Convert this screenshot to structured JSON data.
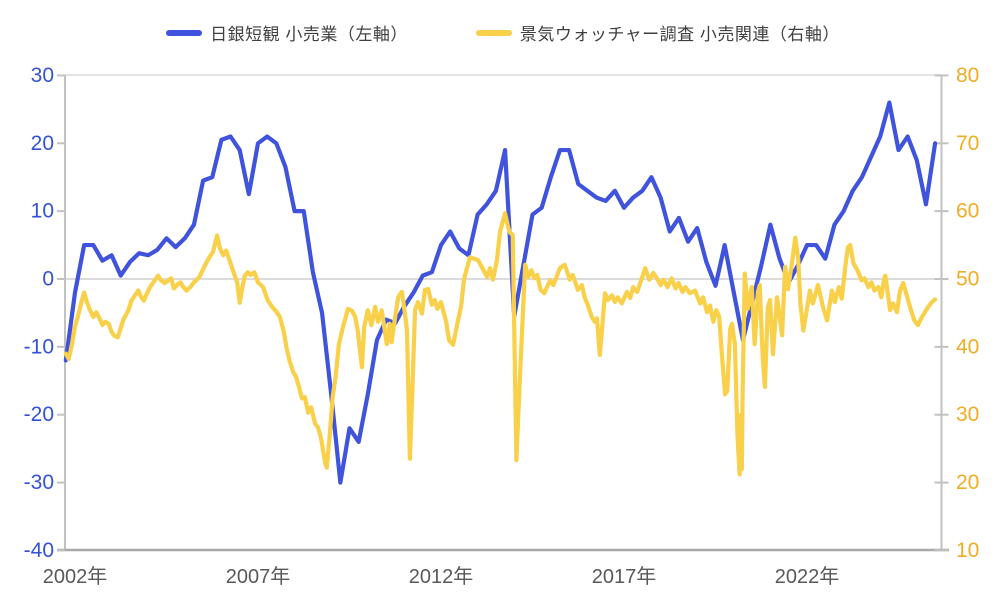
{
  "legend": {
    "tankan_label": "日銀短観 小売業（左軸）",
    "watchers_label": "景気ウォッチャー調査 小売関連（右軸）"
  },
  "chart_data": {
    "type": "line",
    "title": "",
    "xlabel": "",
    "ylabel_left": "",
    "ylabel_right": "",
    "grid": "horizontal line at left-axis 0 / right-axis 50 only, plus top border",
    "legend_position": "top-center",
    "x_axis": {
      "range_years": [
        2001.73,
        2025.7
      ],
      "ticks": [
        {
          "t": 2002,
          "label": "2002年"
        },
        {
          "t": 2007,
          "label": "2007年"
        },
        {
          "t": 2012,
          "label": "2012年"
        },
        {
          "t": 2017,
          "label": "2017年"
        },
        {
          "t": 2022,
          "label": "2022年"
        }
      ],
      "label_color": "#595959"
    },
    "y_axis_left": {
      "ticks": [
        30,
        20,
        10,
        0,
        -10,
        -20,
        -30,
        -40
      ],
      "range": [
        -40,
        30
      ],
      "label_color": "#3452D5"
    },
    "y_axis_right": {
      "ticks": [
        80,
        70,
        60,
        50,
        40,
        30,
        20,
        10
      ],
      "range": [
        10,
        80
      ],
      "label_color": "#EDAD25"
    },
    "axis_line_color": "#C2C2C2",
    "bottom_axis_color": "#A9A9A9",
    "gridline_color": "#DBDBDB",
    "series": [
      {
        "name": "日銀短観 小売業（左軸）",
        "axis": "left",
        "color": "#4053DC",
        "frequency": "quarterly",
        "t0": 2001.75,
        "dt": 0.25,
        "values": [
          -12,
          -2,
          5,
          5,
          2.7,
          3.5,
          0.5,
          2.5,
          3.8,
          3.5,
          4.3,
          6,
          4.7,
          6,
          8,
          14.5,
          15,
          20.5,
          21,
          19,
          12.5,
          20,
          21,
          20,
          16.5,
          10,
          10,
          1,
          -5,
          -17,
          -30,
          -22,
          -24,
          -17,
          -9,
          -6,
          -6.5,
          -4,
          -2,
          0.5,
          1,
          5,
          7,
          4.5,
          3.5,
          9.5,
          11,
          13,
          19,
          -5.5,
          2,
          9.5,
          10.5,
          15,
          19,
          19,
          14,
          13,
          12,
          11.5,
          13,
          10.5,
          12,
          13,
          15,
          12,
          7,
          9,
          5.5,
          7.5,
          2.5,
          -1,
          5,
          -2,
          -9,
          -3.5,
          2,
          8,
          3,
          -0.5,
          2,
          5,
          5,
          3,
          8,
          10,
          13,
          15,
          18,
          21,
          26,
          19,
          21,
          17.5,
          11,
          20
        ]
      },
      {
        "name": "景気ウォッチャー調査 小売関連（右軸）",
        "axis": "right",
        "color": "#F9D04A",
        "frequency": "monthly",
        "points": [
          [
            2001.75,
            39
          ],
          [
            2001.83,
            38.2
          ],
          [
            2001.92,
            40.5
          ],
          [
            2002.0,
            43
          ],
          [
            2002.08,
            44.5
          ],
          [
            2002.17,
            46.5
          ],
          [
            2002.25,
            48
          ],
          [
            2002.33,
            46.5
          ],
          [
            2002.42,
            45.3
          ],
          [
            2002.5,
            44.4
          ],
          [
            2002.58,
            45.1
          ],
          [
            2002.67,
            44.2
          ],
          [
            2002.75,
            43.2
          ],
          [
            2002.83,
            43.7
          ],
          [
            2002.92,
            43.4
          ],
          [
            2003.0,
            42.2
          ],
          [
            2003.08,
            41.6
          ],
          [
            2003.17,
            41.4
          ],
          [
            2003.25,
            42.8
          ],
          [
            2003.33,
            44.1
          ],
          [
            2003.46,
            45.4
          ],
          [
            2003.54,
            46.8
          ],
          [
            2003.63,
            47.5
          ],
          [
            2003.73,
            48.3
          ],
          [
            2003.8,
            47.4
          ],
          [
            2003.88,
            46.8
          ],
          [
            2003.96,
            47.8
          ],
          [
            2004.05,
            48.8
          ],
          [
            2004.14,
            49.5
          ],
          [
            2004.27,
            50.5
          ],
          [
            2004.35,
            49.8
          ],
          [
            2004.45,
            49.4
          ],
          [
            2004.55,
            49.8
          ],
          [
            2004.63,
            50.1
          ],
          [
            2004.7,
            48.6
          ],
          [
            2004.8,
            49.2
          ],
          [
            2004.88,
            49.5
          ],
          [
            2004.96,
            48.8
          ],
          [
            2005.05,
            48.3
          ],
          [
            2005.15,
            48.8
          ],
          [
            2005.25,
            49.5
          ],
          [
            2005.4,
            50.3
          ],
          [
            2005.55,
            52
          ],
          [
            2005.65,
            53
          ],
          [
            2005.77,
            54
          ],
          [
            2005.88,
            56.4
          ],
          [
            2005.96,
            54.5
          ],
          [
            2006.05,
            53.5
          ],
          [
            2006.13,
            54.2
          ],
          [
            2006.22,
            52.8
          ],
          [
            2006.3,
            51.5
          ],
          [
            2006.43,
            49.5
          ],
          [
            2006.5,
            46.5
          ],
          [
            2006.58,
            49
          ],
          [
            2006.64,
            50.5
          ],
          [
            2006.72,
            51
          ],
          [
            2006.8,
            50.6
          ],
          [
            2006.9,
            51
          ],
          [
            2007.0,
            49.5
          ],
          [
            2007.14,
            48.8
          ],
          [
            2007.27,
            46.8
          ],
          [
            2007.4,
            45.8
          ],
          [
            2007.5,
            45.2
          ],
          [
            2007.6,
            44.4
          ],
          [
            2007.7,
            42.3
          ],
          [
            2007.79,
            39.6
          ],
          [
            2007.87,
            37.8
          ],
          [
            2007.96,
            36.3
          ],
          [
            2008.04,
            35.6
          ],
          [
            2008.12,
            34.1
          ],
          [
            2008.2,
            32.4
          ],
          [
            2008.28,
            32.6
          ],
          [
            2008.37,
            30.3
          ],
          [
            2008.45,
            31.1
          ],
          [
            2008.56,
            28.7
          ],
          [
            2008.64,
            28.1
          ],
          [
            2008.72,
            26.6
          ],
          [
            2008.83,
            23
          ],
          [
            2008.88,
            22.2
          ],
          [
            2008.96,
            27
          ],
          [
            2009.04,
            32.6
          ],
          [
            2009.12,
            35.6
          ],
          [
            2009.21,
            40.4
          ],
          [
            2009.32,
            42.9
          ],
          [
            2009.46,
            45.6
          ],
          [
            2009.57,
            45.3
          ],
          [
            2009.65,
            44.5
          ],
          [
            2009.72,
            42.6
          ],
          [
            2009.84,
            37
          ],
          [
            2009.9,
            42.9
          ],
          [
            2010.0,
            45.4
          ],
          [
            2010.1,
            43.2
          ],
          [
            2010.2,
            45.9
          ],
          [
            2010.28,
            43.7
          ],
          [
            2010.38,
            45.4
          ],
          [
            2010.52,
            40.4
          ],
          [
            2010.6,
            43.4
          ],
          [
            2010.65,
            40.7
          ],
          [
            2010.75,
            44.5
          ],
          [
            2010.83,
            47.3
          ],
          [
            2010.93,
            48.1
          ],
          [
            2010.98,
            46.3
          ],
          [
            2011.07,
            42.5
          ],
          [
            2011.15,
            23.5
          ],
          [
            2011.23,
            35.6
          ],
          [
            2011.29,
            45.4
          ],
          [
            2011.37,
            46.6
          ],
          [
            2011.48,
            44.9
          ],
          [
            2011.56,
            48.4
          ],
          [
            2011.65,
            48.5
          ],
          [
            2011.75,
            46.2
          ],
          [
            2011.83,
            46.9
          ],
          [
            2011.9,
            45.6
          ],
          [
            2012.0,
            46.6
          ],
          [
            2012.14,
            43.7
          ],
          [
            2012.22,
            41
          ],
          [
            2012.33,
            40.3
          ],
          [
            2012.45,
            43.5
          ],
          [
            2012.55,
            46
          ],
          [
            2012.63,
            50
          ],
          [
            2012.79,
            53.2
          ],
          [
            2013.01,
            52.8
          ],
          [
            2013.26,
            50.3
          ],
          [
            2013.34,
            51.6
          ],
          [
            2013.42,
            49.9
          ],
          [
            2013.53,
            52.8
          ],
          [
            2013.61,
            56.9
          ],
          [
            2013.75,
            59.7
          ],
          [
            2013.83,
            57.7
          ],
          [
            2013.89,
            56.8
          ],
          [
            2013.96,
            56.5
          ],
          [
            2014.06,
            23.3
          ],
          [
            2014.16,
            36
          ],
          [
            2014.3,
            52.1
          ],
          [
            2014.38,
            50.3
          ],
          [
            2014.47,
            51.3
          ],
          [
            2014.55,
            50.1
          ],
          [
            2014.63,
            50.6
          ],
          [
            2014.72,
            48.4
          ],
          [
            2014.82,
            47.9
          ],
          [
            2014.98,
            49.8
          ],
          [
            2015.07,
            49.1
          ],
          [
            2015.25,
            51.6
          ],
          [
            2015.38,
            52.1
          ],
          [
            2015.52,
            49.9
          ],
          [
            2015.6,
            50.6
          ],
          [
            2015.74,
            48.4
          ],
          [
            2015.85,
            49.1
          ],
          [
            2015.93,
            47.2
          ],
          [
            2016.01,
            46.2
          ],
          [
            2016.12,
            44.4
          ],
          [
            2016.2,
            43.7
          ],
          [
            2016.26,
            44.2
          ],
          [
            2016.34,
            38.8
          ],
          [
            2016.42,
            44
          ],
          [
            2016.48,
            47.9
          ],
          [
            2016.56,
            46.9
          ],
          [
            2016.67,
            47.6
          ],
          [
            2016.75,
            46.6
          ],
          [
            2016.83,
            47.3
          ],
          [
            2016.94,
            46.4
          ],
          [
            2017.08,
            48.1
          ],
          [
            2017.17,
            47.2
          ],
          [
            2017.25,
            48.8
          ],
          [
            2017.36,
            48.1
          ],
          [
            2017.5,
            50.3
          ],
          [
            2017.58,
            51.6
          ],
          [
            2017.69,
            49.9
          ],
          [
            2017.8,
            50.9
          ],
          [
            2017.9,
            50.1
          ],
          [
            2018.0,
            49.1
          ],
          [
            2018.08,
            49.9
          ],
          [
            2018.19,
            48.8
          ],
          [
            2018.3,
            50.1
          ],
          [
            2018.41,
            48.6
          ],
          [
            2018.49,
            49.4
          ],
          [
            2018.6,
            48.1
          ],
          [
            2018.68,
            48.8
          ],
          [
            2018.8,
            47.9
          ],
          [
            2018.94,
            48.3
          ],
          [
            2019.08,
            46.4
          ],
          [
            2019.16,
            47.3
          ],
          [
            2019.27,
            45.1
          ],
          [
            2019.35,
            46.1
          ],
          [
            2019.44,
            43.7
          ],
          [
            2019.52,
            45.4
          ],
          [
            2019.6,
            44.5
          ],
          [
            2019.68,
            38.5
          ],
          [
            2019.76,
            33
          ],
          [
            2019.82,
            33.5
          ],
          [
            2019.9,
            42.6
          ],
          [
            2019.95,
            43.4
          ],
          [
            2020.03,
            40.4
          ],
          [
            2020.1,
            27
          ],
          [
            2020.16,
            21.2
          ],
          [
            2020.2,
            30
          ],
          [
            2020.22,
            22
          ],
          [
            2020.24,
            33
          ],
          [
            2020.3,
            50.8
          ],
          [
            2020.38,
            45.6
          ],
          [
            2020.49,
            48.8
          ],
          [
            2020.57,
            40.4
          ],
          [
            2020.66,
            48.1
          ],
          [
            2020.71,
            49.1
          ],
          [
            2020.79,
            38.5
          ],
          [
            2020.85,
            34.1
          ],
          [
            2020.93,
            45.9
          ],
          [
            2020.99,
            46.9
          ],
          [
            2021.07,
            38.9
          ],
          [
            2021.18,
            47.3
          ],
          [
            2021.32,
            41.7
          ],
          [
            2021.4,
            51.8
          ],
          [
            2021.48,
            48.5
          ],
          [
            2021.58,
            52
          ],
          [
            2021.68,
            56.1
          ],
          [
            2021.76,
            53
          ],
          [
            2021.82,
            46.4
          ],
          [
            2021.9,
            42.4
          ],
          [
            2021.98,
            45
          ],
          [
            2022.08,
            48.3
          ],
          [
            2022.16,
            46.4
          ],
          [
            2022.3,
            49.1
          ],
          [
            2022.44,
            45.8
          ],
          [
            2022.55,
            43.9
          ],
          [
            2022.68,
            48.3
          ],
          [
            2022.76,
            46.6
          ],
          [
            2022.87,
            48.8
          ],
          [
            2022.95,
            47.1
          ],
          [
            2023.05,
            52
          ],
          [
            2023.12,
            54.7
          ],
          [
            2023.18,
            55
          ],
          [
            2023.27,
            52.3
          ],
          [
            2023.38,
            51.3
          ],
          [
            2023.49,
            49.8
          ],
          [
            2023.57,
            50.1
          ],
          [
            2023.68,
            48.8
          ],
          [
            2023.76,
            49.5
          ],
          [
            2023.84,
            48.3
          ],
          [
            2023.95,
            48.8
          ],
          [
            2024.03,
            47.3
          ],
          [
            2024.11,
            50.1
          ],
          [
            2024.14,
            50.5
          ],
          [
            2024.27,
            45.4
          ],
          [
            2024.35,
            46.4
          ],
          [
            2024.46,
            45.1
          ],
          [
            2024.54,
            48.3
          ],
          [
            2024.63,
            49.4
          ],
          [
            2024.74,
            47.3
          ],
          [
            2024.82,
            45.8
          ],
          [
            2024.93,
            43.9
          ],
          [
            2025.03,
            43.2
          ],
          [
            2025.14,
            44.4
          ],
          [
            2025.3,
            45.8
          ],
          [
            2025.41,
            46.6
          ],
          [
            2025.5,
            47
          ]
        ]
      }
    ]
  }
}
